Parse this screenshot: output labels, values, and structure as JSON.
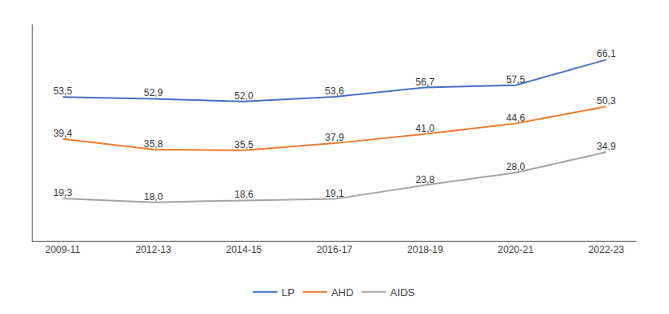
{
  "chart_data": {
    "type": "line",
    "categories": [
      "2009-11",
      "2012-13",
      "2014-15",
      "2016-17",
      "2018-19",
      "2020-21",
      "2022-23"
    ],
    "series": [
      {
        "name": "LP",
        "color": "#4472C4",
        "values": [
          53.5,
          52.9,
          52.0,
          53.6,
          56.7,
          57.5,
          66.1
        ],
        "value_labels": [
          "53,5",
          "52,9",
          "52,0",
          "53,6",
          "56,7",
          "57,5",
          "66,1"
        ]
      },
      {
        "name": "AHD",
        "color": "#ED7D31",
        "values": [
          39.4,
          35.8,
          35.5,
          37.9,
          41.0,
          44.6,
          50.3
        ],
        "value_labels": [
          "39,4",
          "35,8",
          "35,5",
          "37,9",
          "41,0",
          "44,6",
          "50,3"
        ]
      },
      {
        "name": "AIDS",
        "color": "#A5A5A5",
        "values": [
          19.3,
          18.0,
          18.6,
          19.1,
          23.8,
          28.0,
          34.9
        ],
        "value_labels": [
          "19,3",
          "18,0",
          "18,6",
          "19,1",
          "23,8",
          "28,0",
          "34,9"
        ]
      }
    ],
    "ylim": [
      5,
      78
    ],
    "data_labels": true,
    "tick_labels": "x",
    "grid": false,
    "legend": "bottom"
  }
}
